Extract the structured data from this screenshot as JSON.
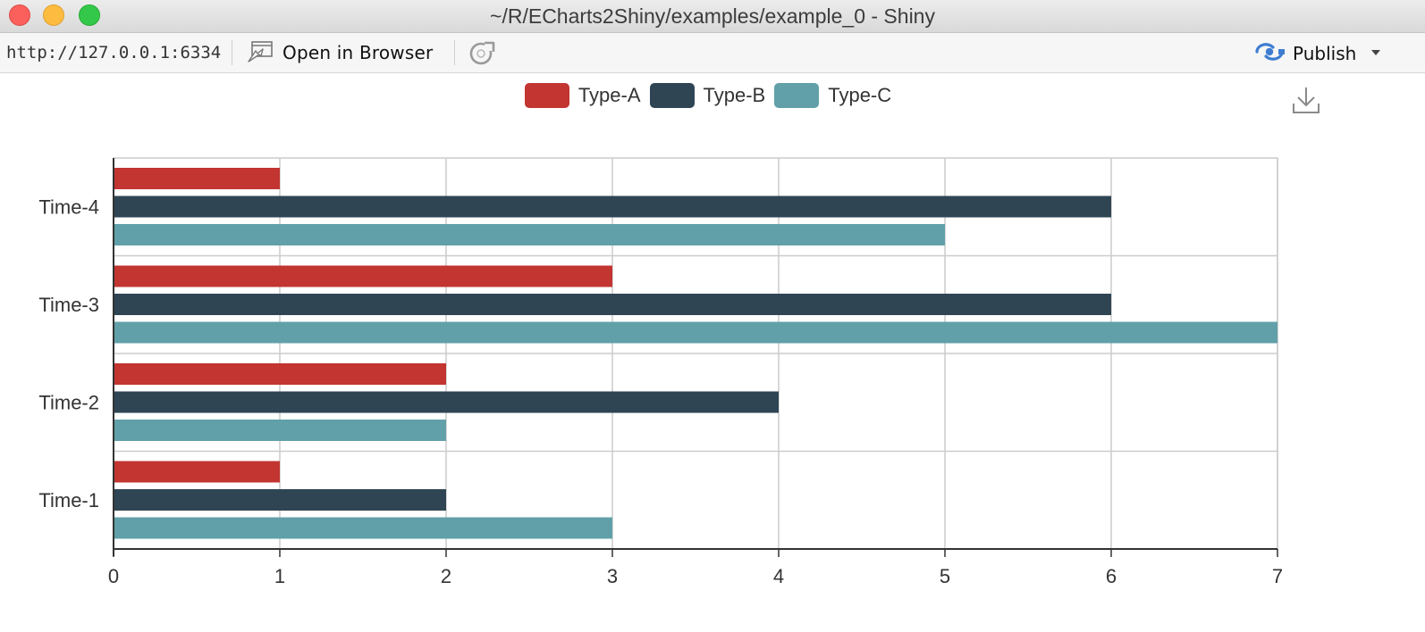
{
  "window": {
    "title": "~/R/ECharts2Shiny/examples/example_0 - Shiny"
  },
  "toolbar": {
    "url": "http://127.0.0.1:6334",
    "open_in_browser_label": "Open in Browser",
    "publish_label": "Publish",
    "icons": {
      "open_in_browser": "browser-window-icon",
      "refresh": "refresh-icon",
      "publish": "publish-icon",
      "publish_menu": "chevron-down-icon"
    }
  },
  "chart": {
    "download_icon": "download-icon"
  },
  "chart_data": {
    "type": "bar",
    "orientation": "horizontal",
    "categories": [
      "Time-1",
      "Time-2",
      "Time-3",
      "Time-4"
    ],
    "series": [
      {
        "name": "Type-A",
        "color": "#c23531",
        "values": [
          1,
          2,
          3,
          1
        ]
      },
      {
        "name": "Type-B",
        "color": "#2f4554",
        "values": [
          2,
          4,
          6,
          6
        ]
      },
      {
        "name": "Type-C",
        "color": "#61a0a8",
        "values": [
          3,
          2,
          7,
          5
        ]
      }
    ],
    "xlim": [
      0,
      7
    ],
    "xticks": [
      0,
      1,
      2,
      3,
      4,
      5,
      6,
      7
    ],
    "grid": true,
    "legend_position": "top-center",
    "title": "",
    "xlabel": "",
    "ylabel": ""
  }
}
